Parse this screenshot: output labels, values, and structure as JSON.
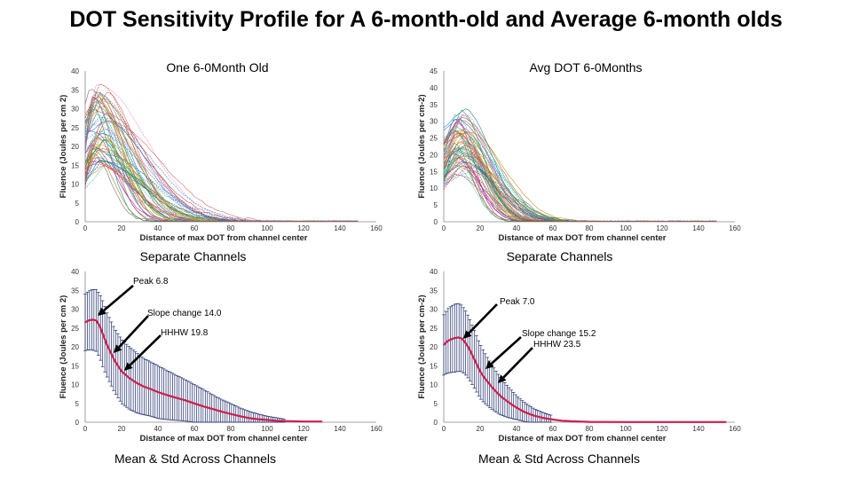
{
  "title": "DOT Sensitivity Profile for A 6-month-old and Average 6-month olds",
  "panels": [
    {
      "id": "tl",
      "title": "One 6-0Month Old",
      "caption": "Separate Channels",
      "xlabel": "Distance of max DOT from channel center",
      "ylabel": "Fluence (Joules per cm 2)",
      "annotations": []
    },
    {
      "id": "tr",
      "title": "Avg DOT 6-0Months",
      "caption": "Separate Channels",
      "xlabel": "Distance of max DOT from channel center",
      "ylabel": "Fluence (Joules per cm-2)",
      "annotations": []
    },
    {
      "id": "bl",
      "title": "",
      "caption": "Mean & Std Across Channels",
      "xlabel": "Distance of max DOT from channel center",
      "ylabel": "Fluence (Joules per cm 2)",
      "annotations": [
        "Peak 6.8",
        "Slope change 14.0",
        "HHHW 19.8"
      ]
    },
    {
      "id": "br",
      "title": "",
      "caption": "Mean & Std Across Channels",
      "xlabel": "Distance of max DOT from channel center",
      "ylabel": "Fluence (Joules per cm-2)",
      "annotations": [
        "Peak 7.0",
        "Slope change 15.2",
        "HHHW 23.5"
      ]
    }
  ],
  "colors": {
    "mean_line": "#cc1f4e",
    "error_bars": "#1f2d6b",
    "arrow": "#000000"
  },
  "chart_data": [
    {
      "type": "line",
      "panel": "tl",
      "xlim": [
        0,
        160
      ],
      "ylim": [
        0,
        40
      ],
      "xticks": [
        0,
        20,
        40,
        60,
        80,
        100,
        120,
        140,
        160
      ],
      "yticks": [
        0,
        5,
        10,
        15,
        20,
        25,
        30,
        35,
        40
      ],
      "curves": {
        "count": 60,
        "peak_range": [
          14,
          38
        ],
        "peak_x_range": [
          2,
          12
        ],
        "decay_range": [
          10,
          32
        ]
      }
    },
    {
      "type": "line",
      "panel": "tr",
      "xlim": [
        0,
        160
      ],
      "ylim": [
        0,
        45
      ],
      "xticks": [
        0,
        20,
        40,
        60,
        80,
        100,
        120,
        140,
        160
      ],
      "yticks": [
        0,
        5,
        10,
        15,
        20,
        25,
        30,
        35,
        40,
        45
      ],
      "curves": {
        "count": 60,
        "peak_range": [
          14,
          34
        ],
        "peak_x_range": [
          4,
          14
        ],
        "decay_range": [
          10,
          22
        ]
      }
    },
    {
      "type": "line",
      "panel": "bl",
      "xlim": [
        0,
        160
      ],
      "ylim": [
        0,
        40
      ],
      "xticks": [
        0,
        20,
        40,
        60,
        80,
        100,
        120,
        140,
        160
      ],
      "yticks": [
        0,
        5,
        10,
        15,
        20,
        25,
        30,
        35,
        40
      ],
      "x": [
        0,
        2,
        4,
        6,
        8,
        10,
        12,
        14,
        16,
        18,
        20,
        24,
        28,
        32,
        36,
        40,
        45,
        50,
        55,
        60,
        65,
        70,
        75,
        80,
        85,
        90,
        95,
        100,
        105,
        110,
        120,
        130
      ],
      "mean": [
        26.5,
        27.0,
        27.2,
        27.0,
        25.5,
        23.0,
        20.5,
        18.5,
        16.5,
        15.0,
        13.5,
        11.8,
        10.5,
        9.5,
        8.8,
        8.0,
        7.2,
        6.5,
        5.8,
        5.0,
        4.2,
        3.5,
        2.8,
        2.2,
        1.6,
        1.1,
        0.8,
        0.6,
        0.4,
        0.3,
        0.2,
        0.2
      ],
      "std": [
        7.5,
        7.8,
        8.0,
        8.2,
        8.5,
        8.8,
        8.5,
        8.5,
        8.5,
        8.5,
        8.5,
        8.3,
        8.0,
        7.5,
        7.2,
        7.0,
        6.5,
        6.0,
        5.5,
        5.0,
        4.5,
        3.8,
        3.2,
        2.8,
        2.2,
        1.8,
        1.4,
        1.0,
        0.8,
        0.5,
        0.3,
        0.2
      ],
      "error_bar_x_max": 110
    },
    {
      "type": "line",
      "panel": "br",
      "xlim": [
        0,
        160
      ],
      "ylim": [
        0,
        40
      ],
      "xticks": [
        0,
        20,
        40,
        60,
        80,
        100,
        120,
        140,
        160
      ],
      "yticks": [
        0,
        5,
        10,
        15,
        20,
        25,
        30,
        35,
        40
      ],
      "x": [
        0,
        2,
        4,
        6,
        8,
        10,
        12,
        14,
        16,
        18,
        20,
        22,
        24,
        26,
        28,
        30,
        32,
        35,
        38,
        41,
        44,
        47,
        50,
        55,
        60,
        65,
        70,
        80,
        100,
        120,
        140,
        155
      ],
      "mean": [
        20.5,
        21.5,
        22.0,
        22.3,
        22.5,
        22.2,
        21.0,
        19.5,
        17.5,
        15.5,
        13.5,
        12.0,
        10.8,
        9.6,
        8.5,
        7.5,
        6.6,
        5.5,
        4.5,
        3.6,
        2.8,
        2.2,
        1.7,
        1.1,
        0.7,
        0.4,
        0.25,
        0.1,
        0.05,
        0.05,
        0.05,
        0.05
      ],
      "std": [
        8.0,
        8.5,
        8.8,
        9.0,
        9.0,
        8.8,
        8.5,
        8.2,
        7.8,
        7.5,
        7.2,
        6.8,
        6.4,
        6.0,
        5.6,
        5.2,
        4.8,
        4.2,
        3.6,
        3.0,
        2.6,
        2.2,
        1.8,
        1.4,
        1.0,
        0.7,
        0.4,
        0.2,
        0.0,
        0.0,
        0.0,
        0.0
      ],
      "error_bar_x_max": 60
    }
  ]
}
